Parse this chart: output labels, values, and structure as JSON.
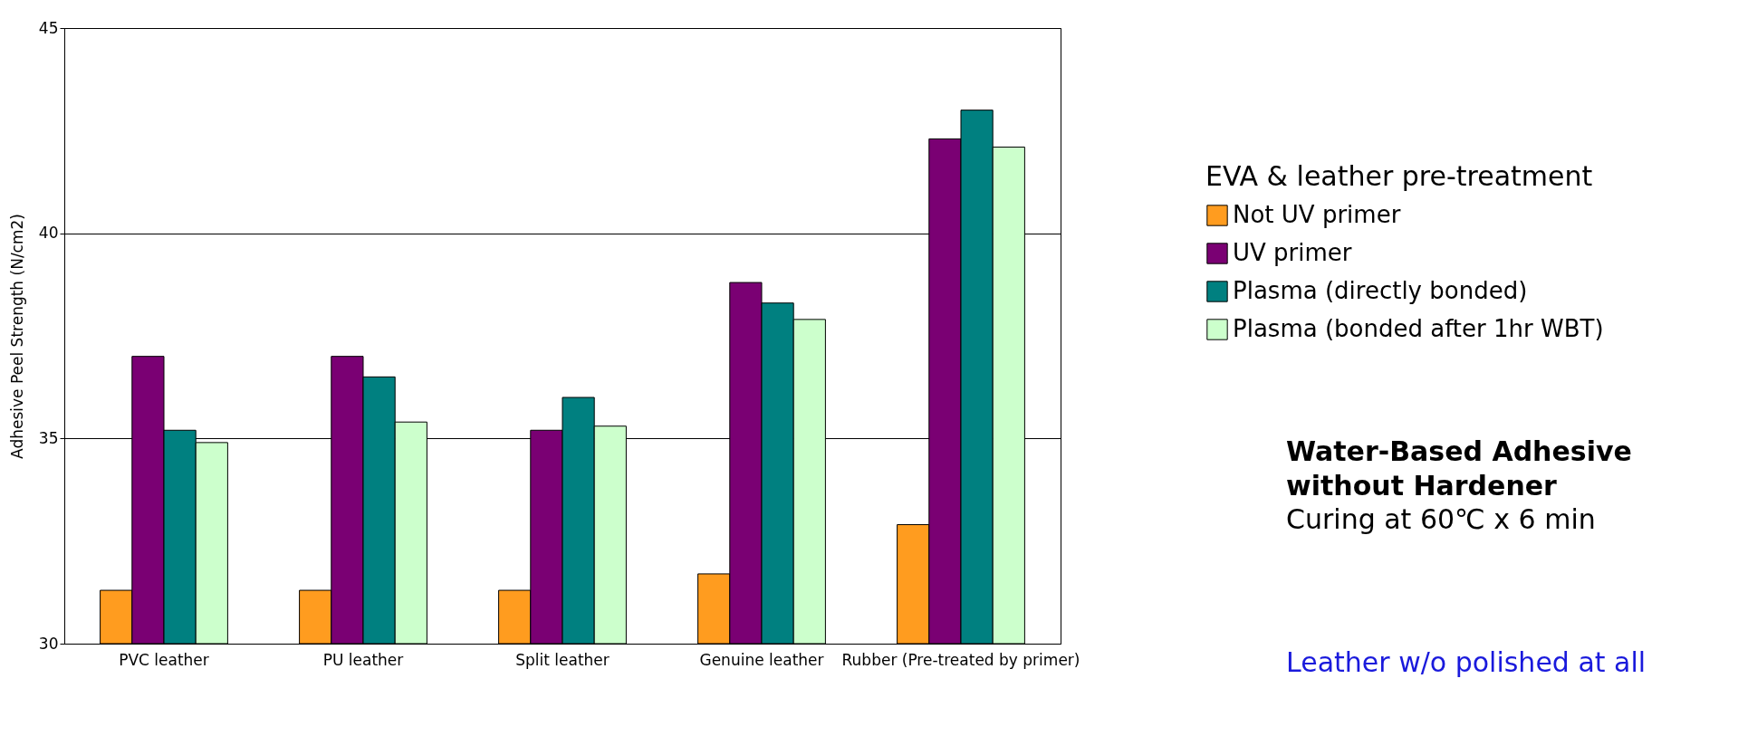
{
  "chart_data": {
    "type": "bar",
    "ylabel": "Adhesive Peel Strength (N/cm2)",
    "legend_title": "EVA & leather pre-treatment",
    "categories": [
      "PVC leather",
      "PU leather",
      "Split leather",
      "Genuine leather",
      "Rubber (Pre-treated by primer)"
    ],
    "series": [
      {
        "name": "Not UV primer",
        "color": "#ff9c1f",
        "values": [
          31.3,
          31.3,
          31.3,
          31.7,
          32.9
        ]
      },
      {
        "name": "UV primer",
        "color": "#7a0073",
        "values": [
          37.0,
          37.0,
          35.2,
          38.8,
          42.3
        ]
      },
      {
        "name": "Plasma (directly bonded)",
        "color": "#008080",
        "values": [
          35.2,
          36.5,
          36.0,
          38.3,
          43.0
        ]
      },
      {
        "name": "Plasma (bonded after 1hr WBT)",
        "color": "#ccffcc",
        "values": [
          34.9,
          35.4,
          35.3,
          37.9,
          42.1
        ]
      }
    ],
    "ylim": [
      30,
      45
    ],
    "yticks": [
      30,
      35,
      40,
      45
    ],
    "grid": "y",
    "legend": "right",
    "annotations": [
      "Water-Based Adhesive without Hardener",
      "Curing at 60℃ x 6 min",
      "Leather w/o polished at all"
    ]
  }
}
